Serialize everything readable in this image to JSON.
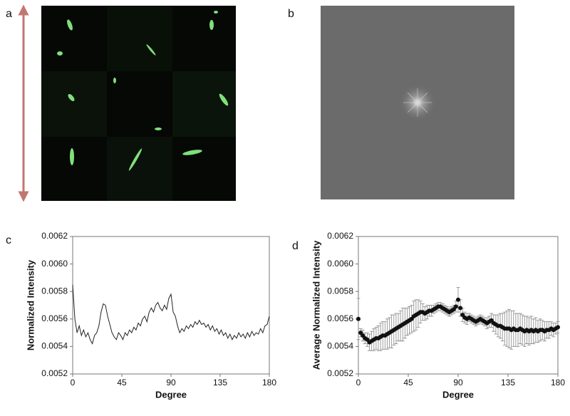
{
  "panels": [
    "a",
    "b",
    "c",
    "d"
  ],
  "chart_data": [
    {
      "type": "line",
      "color": "#222222",
      "xlabel": "Degree",
      "ylabel": "Normalized Intensity",
      "xlim": [
        0,
        180
      ],
      "ylim": [
        0.0052,
        0.0062
      ],
      "xticks": [
        0,
        45,
        90,
        135,
        180
      ],
      "yticks": [
        0.0052,
        0.0054,
        0.0056,
        0.0058,
        {
          "value": 0.006,
          "label": "0.0060"
        },
        0.0062
      ],
      "x": [
        0,
        2,
        4,
        6,
        8,
        10,
        12,
        14,
        16,
        18,
        20,
        22,
        24,
        26,
        28,
        30,
        32,
        34,
        36,
        38,
        40,
        42,
        44,
        46,
        48,
        50,
        52,
        54,
        56,
        58,
        60,
        62,
        64,
        66,
        68,
        70,
        72,
        74,
        76,
        78,
        80,
        82,
        84,
        86,
        88,
        90,
        92,
        94,
        96,
        98,
        100,
        102,
        104,
        106,
        108,
        110,
        112,
        114,
        116,
        118,
        120,
        122,
        124,
        126,
        128,
        130,
        132,
        134,
        136,
        138,
        140,
        142,
        144,
        146,
        148,
        150,
        152,
        154,
        156,
        158,
        160,
        162,
        164,
        166,
        168,
        170,
        172,
        174,
        176,
        178,
        180
      ],
      "values": [
        0.00585,
        0.0056,
        0.0055,
        0.00555,
        0.00548,
        0.00552,
        0.00547,
        0.0055,
        0.00545,
        0.00542,
        0.00548,
        0.0055,
        0.00555,
        0.00565,
        0.00571,
        0.0057,
        0.00562,
        0.00556,
        0.0055,
        0.00547,
        0.00545,
        0.0055,
        0.00548,
        0.00545,
        0.0055,
        0.00548,
        0.00552,
        0.0055,
        0.00554,
        0.00552,
        0.00557,
        0.00555,
        0.0056,
        0.00562,
        0.00558,
        0.00565,
        0.00568,
        0.00565,
        0.0057,
        0.00572,
        0.00568,
        0.00566,
        0.0057,
        0.00567,
        0.00575,
        0.00578,
        0.00565,
        0.00562,
        0.00555,
        0.0055,
        0.00553,
        0.00551,
        0.00555,
        0.00553,
        0.00556,
        0.00554,
        0.00558,
        0.00556,
        0.00559,
        0.00556,
        0.00557,
        0.00554,
        0.00556,
        0.00552,
        0.00555,
        0.00551,
        0.00553,
        0.00549,
        0.00552,
        0.00548,
        0.0055,
        0.00546,
        0.00549,
        0.00545,
        0.00548,
        0.00546,
        0.0055,
        0.00547,
        0.00549,
        0.00546,
        0.0055,
        0.00547,
        0.00551,
        0.00548,
        0.0055,
        0.00549,
        0.00553,
        0.0055,
        0.00555,
        0.00556,
        0.00562
      ]
    },
    {
      "type": "scatter",
      "color": "#111111",
      "error_color": "#888888",
      "xlabel": "Degree",
      "ylabel": "Average Normalized Intensity",
      "xlim": [
        0,
        180
      ],
      "ylim": [
        0.0052,
        0.0062
      ],
      "xticks": [
        0,
        45,
        90,
        135,
        180
      ],
      "yticks": [
        0.0052,
        0.0054,
        0.0056,
        0.0058,
        {
          "value": 0.006,
          "label": "0.0060"
        },
        0.0062
      ],
      "x": [
        0,
        2,
        4,
        6,
        8,
        10,
        12,
        14,
        16,
        18,
        20,
        22,
        24,
        26,
        28,
        30,
        32,
        34,
        36,
        38,
        40,
        42,
        44,
        46,
        48,
        50,
        52,
        54,
        56,
        58,
        60,
        62,
        64,
        66,
        68,
        70,
        72,
        74,
        76,
        78,
        80,
        82,
        84,
        86,
        88,
        90,
        92,
        94,
        96,
        98,
        100,
        102,
        104,
        106,
        108,
        110,
        112,
        114,
        116,
        118,
        120,
        122,
        124,
        126,
        128,
        130,
        132,
        134,
        136,
        138,
        140,
        142,
        144,
        146,
        148,
        150,
        152,
        154,
        156,
        158,
        160,
        162,
        164,
        166,
        168,
        170,
        172,
        174,
        176,
        178,
        180
      ],
      "values": [
        0.0056,
        0.0055,
        0.00548,
        0.00546,
        0.00545,
        0.00543,
        0.00544,
        0.00545,
        0.00546,
        0.00546,
        0.00547,
        0.00548,
        0.00548,
        0.00549,
        0.0055,
        0.00551,
        0.00552,
        0.00553,
        0.00554,
        0.00555,
        0.00556,
        0.00557,
        0.00558,
        0.00559,
        0.0056,
        0.00562,
        0.00563,
        0.00564,
        0.00565,
        0.00565,
        0.00564,
        0.00565,
        0.00566,
        0.00566,
        0.00567,
        0.00568,
        0.00569,
        0.00569,
        0.00568,
        0.00567,
        0.00566,
        0.00565,
        0.00566,
        0.00567,
        0.00569,
        0.00574,
        0.00568,
        0.00563,
        0.00561,
        0.0056,
        0.00561,
        0.0056,
        0.00559,
        0.00558,
        0.00559,
        0.0056,
        0.00559,
        0.00558,
        0.00557,
        0.00558,
        0.00559,
        0.00557,
        0.00556,
        0.00555,
        0.00555,
        0.00554,
        0.00553,
        0.00553,
        0.00553,
        0.00552,
        0.00553,
        0.00552,
        0.00552,
        0.00553,
        0.00552,
        0.00551,
        0.00552,
        0.00551,
        0.00552,
        0.00551,
        0.00552,
        0.00551,
        0.00552,
        0.00552,
        0.00551,
        0.00552,
        0.00552,
        0.00553,
        0.00552,
        0.00553,
        0.00554
      ],
      "errors": [
        0.00015,
        3e-05,
        4e-05,
        4e-05,
        5e-05,
        6e-05,
        7e-05,
        8e-05,
        8e-05,
        9e-05,
        0.0001,
        0.0001,
        0.0001,
        0.00011,
        0.00011,
        0.00012,
        0.00011,
        0.00011,
        0.0001,
        0.00011,
        0.00012,
        0.00011,
        0.0001,
        0.0001,
        0.0001,
        0.00011,
        0.00011,
        0.0001,
        8e-05,
        6e-05,
        5e-05,
        5e-05,
        4e-05,
        4e-05,
        3e-05,
        3e-05,
        3e-05,
        3e-05,
        3e-05,
        3e-05,
        3e-05,
        3e-05,
        3e-05,
        3e-05,
        4e-05,
        9e-05,
        6e-05,
        5e-05,
        4e-05,
        4e-05,
        3e-05,
        3e-05,
        3e-05,
        3e-05,
        3e-05,
        3e-05,
        3e-05,
        3e-05,
        4e-05,
        4e-05,
        5e-05,
        6e-05,
        7e-05,
        8e-05,
        9e-05,
        0.0001,
        0.00012,
        0.00013,
        0.00014,
        0.00014,
        0.00013,
        0.00012,
        0.00012,
        0.00011,
        0.00011,
        0.00011,
        0.0001,
        0.0001,
        0.0001,
        9e-05,
        9e-05,
        8e-05,
        8e-05,
        7e-05,
        7e-05,
        6e-05,
        6e-05,
        5e-05,
        5e-05,
        4e-05,
        4e-05
      ]
    }
  ]
}
